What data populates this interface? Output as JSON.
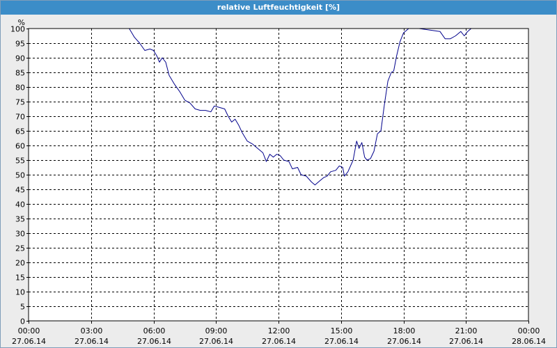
{
  "window": {
    "title": "relative Luftfeuchtigkeit [%]"
  },
  "colors": {
    "title_bar": "#3c8dc8",
    "title_text": "#ffffff",
    "panel_background": "#ececec",
    "plot_background": "#ffffff",
    "grid": "#000000",
    "series_line": "#00008b"
  },
  "chart_data": {
    "type": "line",
    "title": "relative Luftfeuchtigkeit [%]",
    "ylabel": "%",
    "xlabel": "",
    "grid": true,
    "grid_style": "dashed",
    "ylim": [
      0,
      100
    ],
    "yticks": [
      0,
      5,
      10,
      15,
      20,
      25,
      30,
      35,
      40,
      45,
      50,
      55,
      60,
      65,
      70,
      75,
      80,
      85,
      90,
      95,
      100
    ],
    "xlim": [
      "2014-06-27 00:00",
      "2014-06-28 00:00"
    ],
    "xticks": [
      {
        "time": "00:00",
        "date": "27.06.14"
      },
      {
        "time": "03:00",
        "date": "27.06.14"
      },
      {
        "time": "06:00",
        "date": "27.06.14"
      },
      {
        "time": "09:00",
        "date": "27.06.14"
      },
      {
        "time": "12:00",
        "date": "27.06.14"
      },
      {
        "time": "15:00",
        "date": "27.06.14"
      },
      {
        "time": "18:00",
        "date": "27.06.14"
      },
      {
        "time": "21:00",
        "date": "27.06.14"
      },
      {
        "time": "00:00",
        "date": "28.06.14"
      }
    ],
    "series": [
      {
        "color": "#00008b",
        "points": [
          [
            "27.06.14 00:00",
            100
          ],
          [
            "27.06.14 04:50",
            100
          ],
          [
            "27.06.14 05:05",
            97
          ],
          [
            "27.06.14 05:20",
            95
          ],
          [
            "27.06.14 05:35",
            92.5
          ],
          [
            "27.06.14 05:50",
            93
          ],
          [
            "27.06.14 06:00",
            92.5
          ],
          [
            "27.06.14 06:10",
            90.5
          ],
          [
            "27.06.14 06:17",
            88.5
          ],
          [
            "27.06.14 06:25",
            90
          ],
          [
            "27.06.14 06:35",
            88.5
          ],
          [
            "27.06.14 06:45",
            84
          ],
          [
            "27.06.14 07:00",
            81
          ],
          [
            "27.06.14 07:15",
            78.5
          ],
          [
            "27.06.14 07:30",
            75.5
          ],
          [
            "27.06.14 07:45",
            74.5
          ],
          [
            "27.06.14 08:00",
            72.5
          ],
          [
            "27.06.14 08:15",
            72
          ],
          [
            "27.06.14 08:30",
            72
          ],
          [
            "27.06.14 08:45",
            71.5
          ],
          [
            "27.06.14 08:55",
            73.5
          ],
          [
            "27.06.14 09:10",
            73
          ],
          [
            "27.06.14 09:25",
            72.5
          ],
          [
            "27.06.14 09:35",
            70
          ],
          [
            "27.06.14 09:45",
            68
          ],
          [
            "27.06.14 09:55",
            69
          ],
          [
            "27.06.14 10:05",
            67
          ],
          [
            "27.06.14 10:15",
            64.5
          ],
          [
            "27.06.14 10:30",
            61.5
          ],
          [
            "27.06.14 10:45",
            60.5
          ],
          [
            "27.06.14 11:00",
            59
          ],
          [
            "27.06.14 11:15",
            57.5
          ],
          [
            "27.06.14 11:25",
            54.5
          ],
          [
            "27.06.14 11:35",
            57
          ],
          [
            "27.06.14 11:45",
            56
          ],
          [
            "27.06.14 11:55",
            57
          ],
          [
            "27.06.14 12:05",
            56.5
          ],
          [
            "27.06.14 12:15",
            55
          ],
          [
            "27.06.14 12:30",
            54.5
          ],
          [
            "27.06.14 12:40",
            52
          ],
          [
            "27.06.14 12:55",
            52.5
          ],
          [
            "27.06.14 13:05",
            50
          ],
          [
            "27.06.14 13:20",
            49.5
          ],
          [
            "27.06.14 13:35",
            47.5
          ],
          [
            "27.06.14 13:45",
            46.5
          ],
          [
            "27.06.14 14:00",
            48
          ],
          [
            "27.06.14 14:10",
            49
          ],
          [
            "27.06.14 14:20",
            49.5
          ],
          [
            "27.06.14 14:30",
            51
          ],
          [
            "27.06.14 14:45",
            51.5
          ],
          [
            "27.06.14 14:55",
            53
          ],
          [
            "27.06.14 15:05",
            52.5
          ],
          [
            "27.06.14 15:10",
            49.5
          ],
          [
            "27.06.14 15:20",
            51
          ],
          [
            "27.06.14 15:35",
            55
          ],
          [
            "27.06.14 15:45",
            61.5
          ],
          [
            "27.06.14 15:52",
            59
          ],
          [
            "27.06.14 16:00",
            61
          ],
          [
            "27.06.14 16:08",
            56
          ],
          [
            "27.06.14 16:15",
            55
          ],
          [
            "27.06.14 16:25",
            55.5
          ],
          [
            "27.06.14 16:35",
            58
          ],
          [
            "27.06.14 16:45",
            64
          ],
          [
            "27.06.14 16:55",
            65
          ],
          [
            "27.06.14 17:05",
            74
          ],
          [
            "27.06.14 17:15",
            82
          ],
          [
            "27.06.14 17:25",
            85
          ],
          [
            "27.06.14 17:32",
            85.5
          ],
          [
            "27.06.14 17:40",
            90.5
          ],
          [
            "27.06.14 17:50",
            95.5
          ],
          [
            "27.06.14 18:00",
            98.5
          ],
          [
            "27.06.14 18:15",
            100
          ],
          [
            "27.06.14 18:45",
            100
          ],
          [
            "27.06.14 19:15",
            99.5
          ],
          [
            "27.06.14 19:45",
            99
          ],
          [
            "27.06.14 20:00",
            96.5
          ],
          [
            "27.06.14 20:15",
            96.5
          ],
          [
            "27.06.14 20:30",
            97.5
          ],
          [
            "27.06.14 20:45",
            99
          ],
          [
            "27.06.14 20:55",
            97.5
          ],
          [
            "27.06.14 21:05",
            99
          ],
          [
            "27.06.14 21:15",
            100
          ],
          [
            "28.06.14 00:00",
            100
          ]
        ]
      }
    ]
  }
}
